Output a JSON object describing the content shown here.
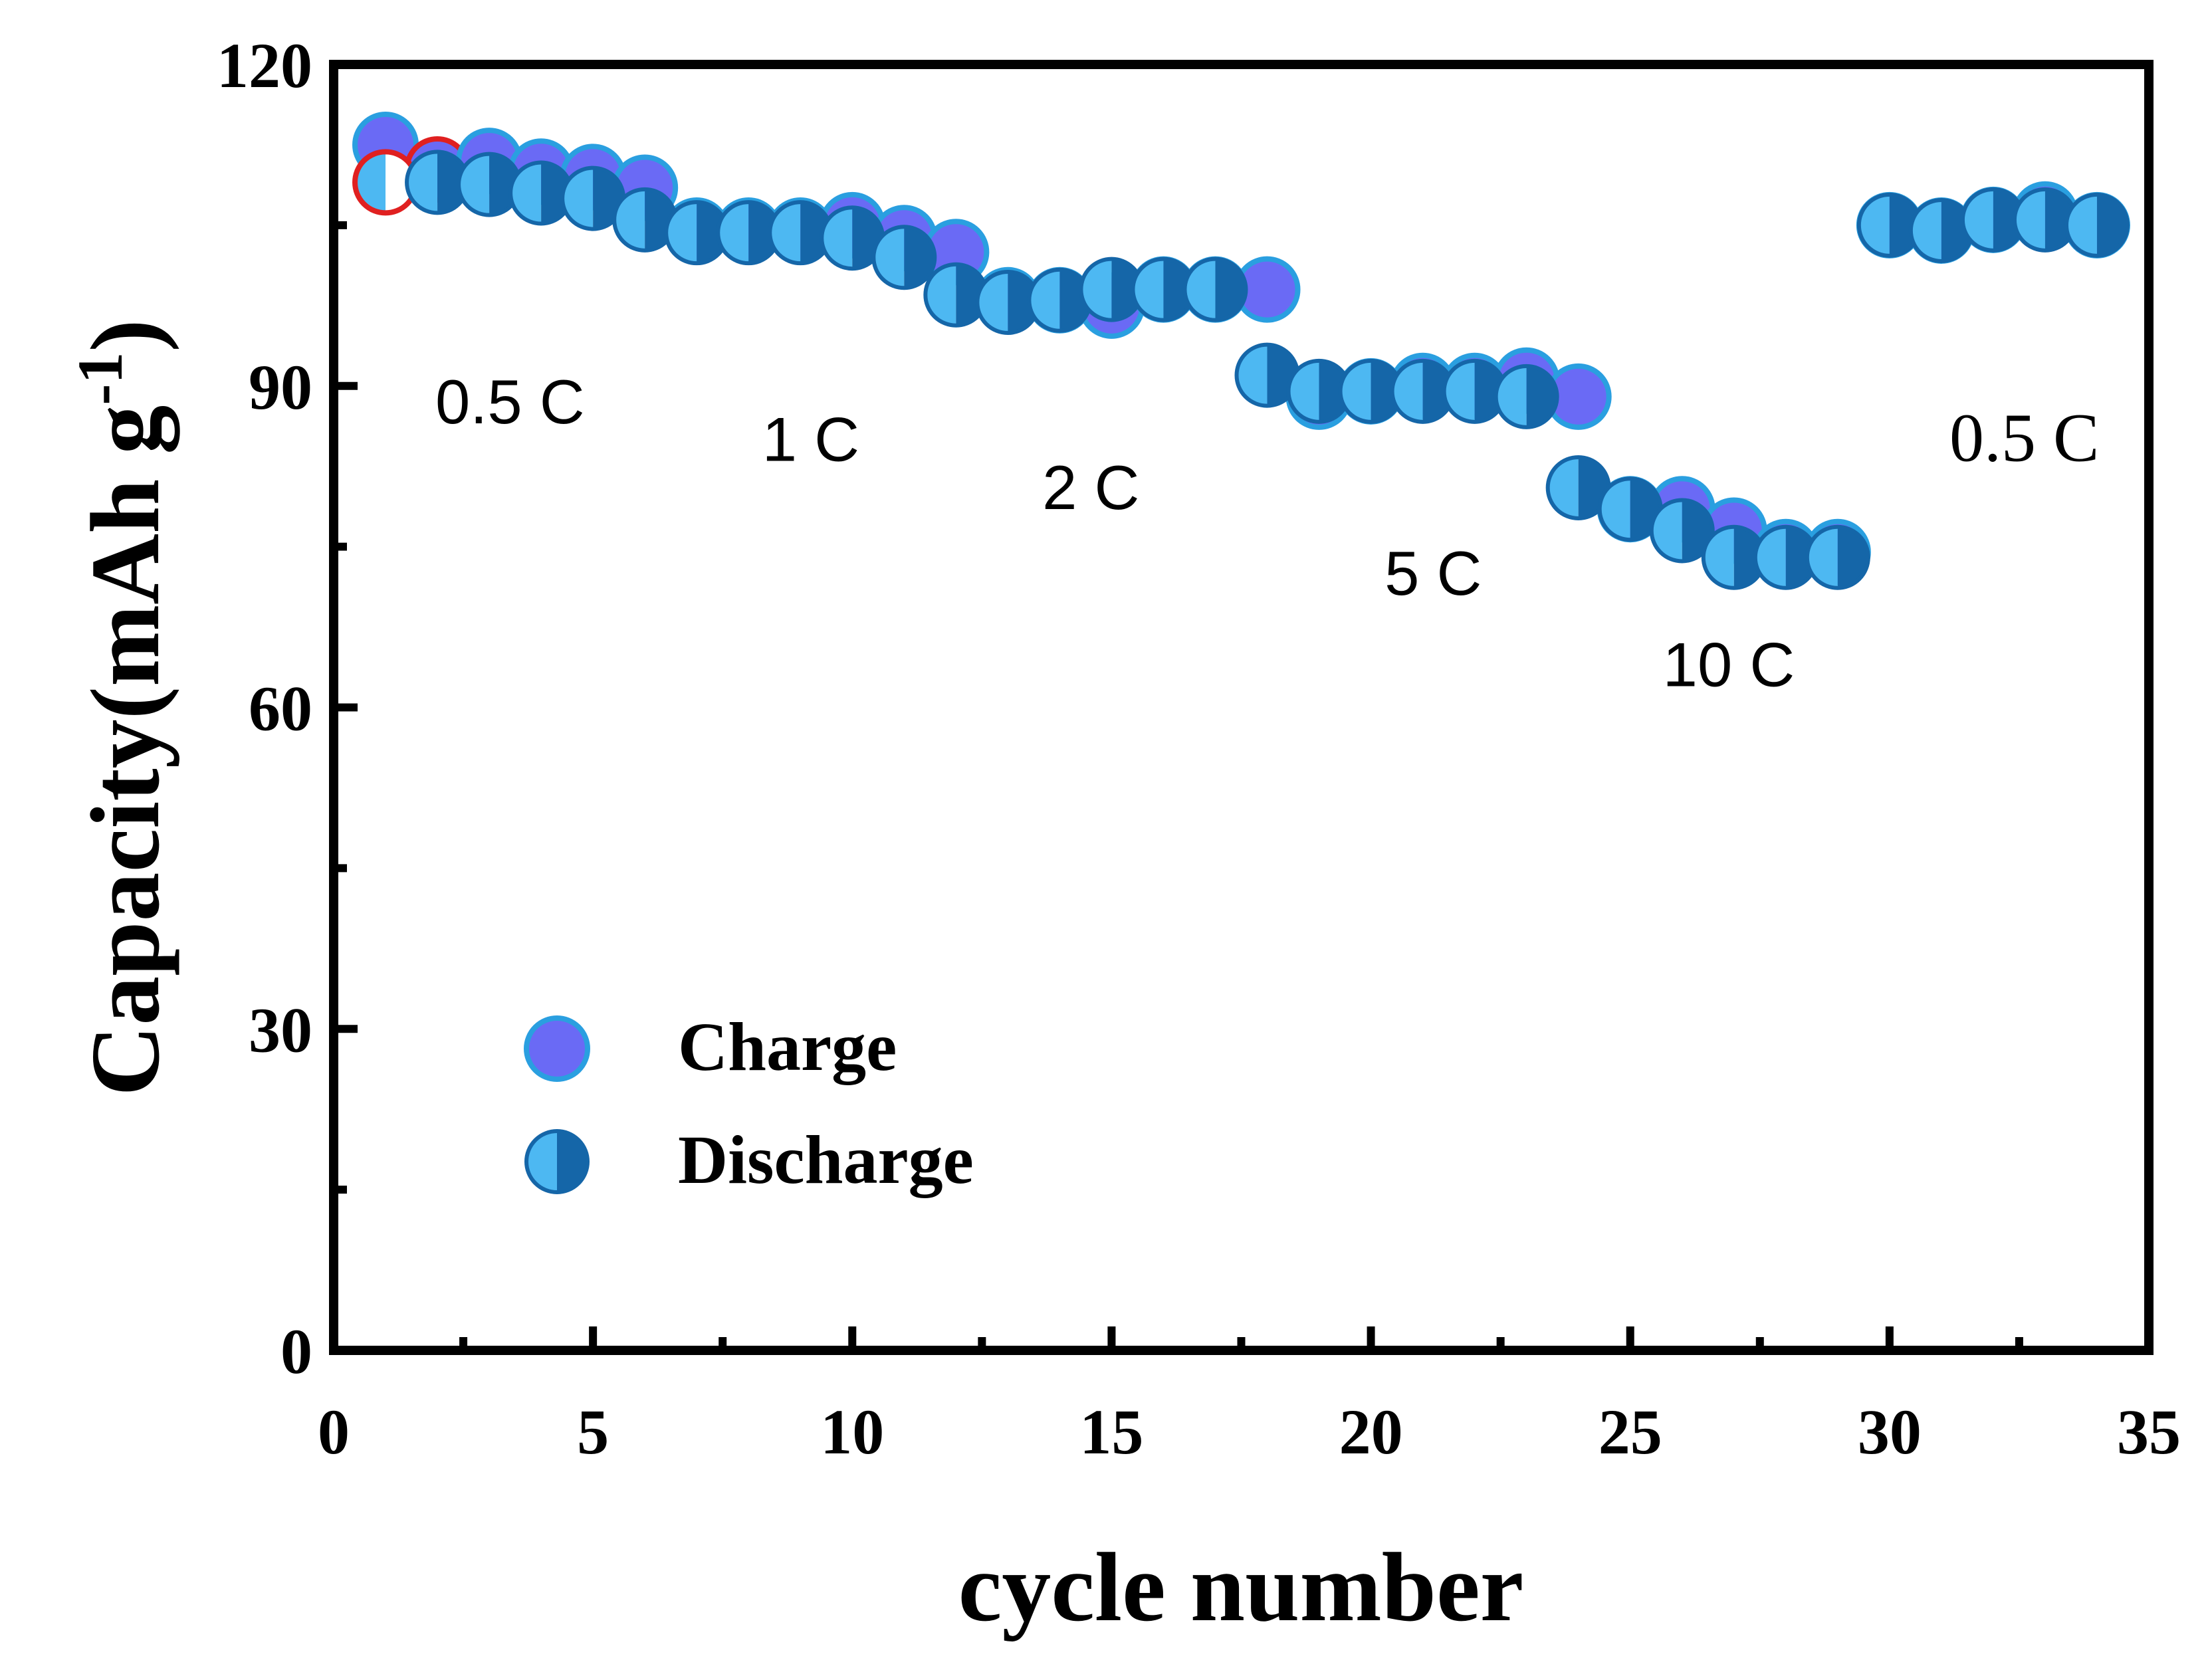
{
  "chart_data": {
    "type": "scatter",
    "xlabel": "cycle number",
    "ylabel": "Capacity(mAh g",
    "ylabel_sup": "-1",
    "ylabel_close": ")",
    "xlim": [
      0,
      35
    ],
    "ylim": [
      0,
      120
    ],
    "x_ticks": [
      0,
      5,
      10,
      15,
      20,
      25,
      30,
      35
    ],
    "y_ticks": [
      0,
      30,
      60,
      90,
      120
    ],
    "x_tick_labels": [
      "0",
      "5",
      "10",
      "15",
      "20",
      "25",
      "30",
      "35"
    ],
    "y_tick_labels": [
      "0",
      "30",
      "60",
      "90",
      "120"
    ],
    "grid": false,
    "legend_position": "lower-left",
    "colors": {
      "charge": "#6a6af5",
      "charge_edge": "#2a9fe0",
      "discharge_left": "#4db8f2",
      "discharge_right": "#1566a8",
      "first_cycle_edge": "#e02020",
      "axis": "#000000"
    },
    "series": [
      {
        "name": "Charge",
        "marker": "filled-circle",
        "x": [
          1,
          2,
          3,
          4,
          5,
          6,
          7,
          8,
          9,
          10,
          11,
          12,
          13,
          14,
          15,
          16,
          17,
          18,
          19,
          20,
          21,
          22,
          23,
          24,
          25,
          26,
          27,
          28,
          29,
          30,
          31,
          32,
          33,
          34
        ],
        "y": [
          112.5,
          110.2,
          111.0,
          110.0,
          109.5,
          108.5,
          104.5,
          104.5,
          104.5,
          105.0,
          103.8,
          102.5,
          98.0,
          98.0,
          97.5,
          99.0,
          99.0,
          99.0,
          89.0,
          89.5,
          90.0,
          90.0,
          90.5,
          89.0,
          78.5,
          78.5,
          76.5,
          74.5,
          74.5,
          105.0,
          104.5,
          105.5,
          106.0,
          105.0
        ]
      },
      {
        "name": "Discharge",
        "marker": "half-filled-circle",
        "x": [
          1,
          2,
          3,
          4,
          5,
          6,
          7,
          8,
          9,
          10,
          11,
          12,
          13,
          14,
          15,
          16,
          17,
          18,
          19,
          20,
          21,
          22,
          23,
          24,
          25,
          26,
          27,
          28,
          29,
          30,
          31,
          32,
          33,
          34
        ],
        "y": [
          109.0,
          109.0,
          108.8,
          108.0,
          107.5,
          105.5,
          104.3,
          104.3,
          104.3,
          103.8,
          102.0,
          98.5,
          97.8,
          98.0,
          99.0,
          99.0,
          99.0,
          91.0,
          89.5,
          89.5,
          89.5,
          89.5,
          89.0,
          80.5,
          78.5,
          76.5,
          74.0,
          74.0,
          74.0,
          105.0,
          104.5,
          105.5,
          105.5,
          105.0
        ]
      }
    ],
    "annotations": [
      {
        "text": "0.5 C",
        "x": 3.4,
        "y": 86.5,
        "style": "sans"
      },
      {
        "text": "1 C",
        "x": 9.2,
        "y": 83.0,
        "style": "sans"
      },
      {
        "text": "2 C",
        "x": 14.6,
        "y": 78.5,
        "style": "sans"
      },
      {
        "text": "5 C",
        "x": 21.2,
        "y": 70.5,
        "style": "sans"
      },
      {
        "text": "10 C",
        "x": 26.9,
        "y": 62.0,
        "style": "sans"
      },
      {
        "text": "0.5 C",
        "x": 32.6,
        "y": 83.0,
        "style": "serif"
      }
    ]
  }
}
